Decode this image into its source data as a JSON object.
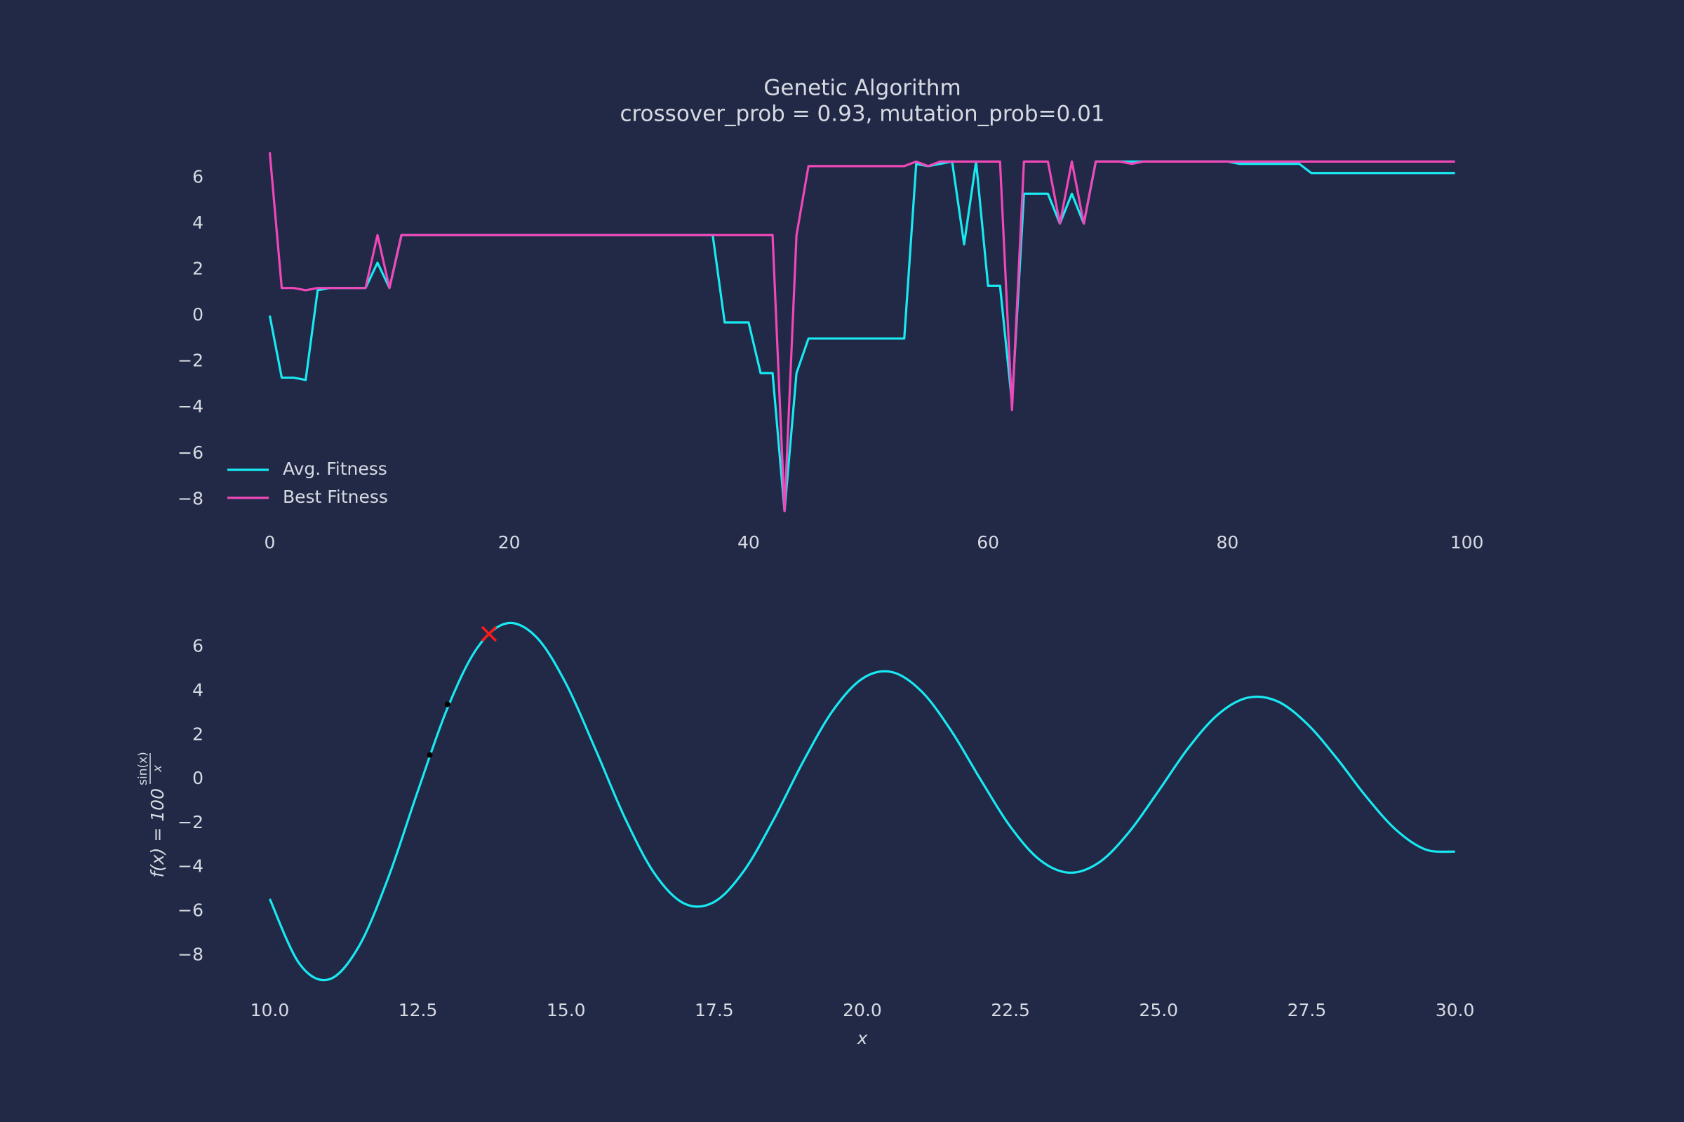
{
  "chart_data": [
    {
      "type": "line",
      "title": "Genetic Algorithm",
      "subtitle": "crossover_prob = 0.93, mutation_prob=0.01",
      "xlim": [
        -4.95,
        103.95
      ],
      "ylim": [
        -9.3,
        7.9
      ],
      "xticks": [
        0,
        20,
        40,
        60,
        80,
        100
      ],
      "yticks": [
        {
          "value": -8,
          "label": "−8"
        },
        {
          "value": -6,
          "label": "−6"
        },
        {
          "value": -4,
          "label": "−4"
        },
        {
          "value": -2,
          "label": "−2"
        },
        0,
        2,
        4,
        6
      ],
      "grid": false,
      "legend": "lower left",
      "x": [
        0,
        1,
        2,
        3,
        4,
        5,
        6,
        7,
        8,
        9,
        10,
        11,
        12,
        13,
        14,
        15,
        16,
        17,
        18,
        19,
        20,
        21,
        22,
        23,
        24,
        25,
        26,
        27,
        28,
        29,
        30,
        31,
        32,
        33,
        34,
        35,
        36,
        37,
        38,
        39,
        40,
        41,
        42,
        43,
        44,
        45,
        46,
        47,
        48,
        49,
        50,
        51,
        52,
        53,
        54,
        55,
        56,
        57,
        58,
        59,
        60,
        61,
        62,
        63,
        64,
        65,
        66,
        67,
        68,
        69,
        70,
        71,
        72,
        73,
        74,
        75,
        76,
        77,
        78,
        79,
        80,
        81,
        82,
        83,
        84,
        85,
        86,
        87,
        88,
        89,
        90,
        91,
        92,
        93,
        94,
        95,
        96,
        97,
        98,
        99
      ],
      "series": [
        {
          "name": "Avg. Fitness",
          "color": "#18e9f2",
          "values": [
            0,
            -2.7,
            -2.7,
            -2.8,
            1.1,
            1.2,
            1.2,
            1.2,
            1.2,
            2.3,
            1.2,
            3.5,
            3.5,
            3.5,
            3.5,
            3.5,
            3.5,
            3.5,
            3.5,
            3.5,
            3.5,
            3.5,
            3.5,
            3.5,
            3.5,
            3.5,
            3.5,
            3.5,
            3.5,
            3.5,
            3.5,
            3.5,
            3.5,
            3.5,
            3.5,
            3.5,
            3.5,
            3.5,
            -0.3,
            -0.3,
            -0.3,
            -2.5,
            -2.5,
            -8.5,
            -2.5,
            -1.0,
            -1.0,
            -1.0,
            -1.0,
            -1.0,
            -1.0,
            -1.0,
            -1.0,
            -1.0,
            6.6,
            6.5,
            6.6,
            6.7,
            3.1,
            6.7,
            1.3,
            1.3,
            -3.8,
            5.3,
            5.3,
            5.3,
            4.0,
            5.3,
            4.0,
            6.7,
            6.7,
            6.7,
            6.7,
            6.7,
            6.7,
            6.7,
            6.7,
            6.7,
            6.7,
            6.7,
            6.7,
            6.6,
            6.6,
            6.6,
            6.6,
            6.6,
            6.6,
            6.2,
            6.2,
            6.2,
            6.2,
            6.2,
            6.2,
            6.2,
            6.2,
            6.2,
            6.2,
            6.2,
            6.2,
            6.2
          ]
        },
        {
          "name": "Best Fitness",
          "color": "#f048b8",
          "values": [
            7.1,
            1.2,
            1.2,
            1.1,
            1.2,
            1.2,
            1.2,
            1.2,
            1.2,
            3.5,
            1.2,
            3.5,
            3.5,
            3.5,
            3.5,
            3.5,
            3.5,
            3.5,
            3.5,
            3.5,
            3.5,
            3.5,
            3.5,
            3.5,
            3.5,
            3.5,
            3.5,
            3.5,
            3.5,
            3.5,
            3.5,
            3.5,
            3.5,
            3.5,
            3.5,
            3.5,
            3.5,
            3.5,
            3.5,
            3.5,
            3.5,
            3.5,
            3.5,
            -8.5,
            3.5,
            6.5,
            6.5,
            6.5,
            6.5,
            6.5,
            6.5,
            6.5,
            6.5,
            6.5,
            6.7,
            6.5,
            6.7,
            6.7,
            6.7,
            6.7,
            6.7,
            6.7,
            -4.1,
            6.7,
            6.7,
            6.7,
            4.0,
            6.7,
            4.0,
            6.7,
            6.7,
            6.7,
            6.6,
            6.7,
            6.7,
            6.7,
            6.7,
            6.7,
            6.7,
            6.7,
            6.7,
            6.7,
            6.7,
            6.7,
            6.7,
            6.7,
            6.7,
            6.7,
            6.7,
            6.7,
            6.7,
            6.7,
            6.7,
            6.7,
            6.7,
            6.7,
            6.7,
            6.7,
            6.7,
            6.7
          ]
        }
      ]
    },
    {
      "type": "line",
      "xlabel": "x",
      "ylabel": {
        "base": "f(x) = 100",
        "exponent_numerator": "sin(x)",
        "exponent_denominator": "x"
      },
      "xlim": [
        9,
        31
      ],
      "ylim": [
        -9.9,
        7.9
      ],
      "xticks": [
        {
          "value": 10,
          "label": "10.0"
        },
        {
          "value": 12.5,
          "label": "12.5"
        },
        {
          "value": 15,
          "label": "15.0"
        },
        {
          "value": 17.5,
          "label": "17.5"
        },
        {
          "value": 20,
          "label": "20.0"
        },
        {
          "value": 22.5,
          "label": "22.5"
        },
        {
          "value": 25,
          "label": "25.0"
        },
        {
          "value": 27.5,
          "label": "27.5"
        },
        {
          "value": 30,
          "label": "30.0"
        }
      ],
      "yticks": [
        {
          "value": -8,
          "label": "−8"
        },
        {
          "value": -6,
          "label": "−6"
        },
        {
          "value": -4,
          "label": "−4"
        },
        {
          "value": -2,
          "label": "−2"
        },
        0,
        2,
        4,
        6
      ],
      "grid": false,
      "x": [
        10,
        10.5,
        11,
        11.5,
        12,
        12.5,
        13,
        13.5,
        14,
        14.5,
        15,
        15.5,
        16,
        16.5,
        17,
        17.5,
        18,
        18.5,
        19,
        19.5,
        20,
        20.5,
        21,
        21.5,
        22,
        22.5,
        23,
        23.5,
        24,
        24.5,
        25,
        25.5,
        26,
        26.5,
        27,
        27.5,
        28,
        28.5,
        29,
        29.5,
        30
      ],
      "series": [
        {
          "color": "#18e9f2",
          "values": [
            -5.44,
            -8.378,
            -9.091,
            -7.613,
            -4.471,
            -0.531,
            3.232,
            5.954,
            7.076,
            6.448,
            4.335,
            1.333,
            -1.799,
            -4.314,
            -5.655,
            -5.575,
            -4.172,
            -1.851,
            0.789,
            3.105,
            4.565,
            4.862,
            3.984,
            2.197,
            -0.04,
            -2.165,
            -3.679,
            -4.247,
            -3.773,
            -2.406,
            -0.529,
            1.411,
            2.933,
            3.697,
            3.542,
            2.526,
            0.968,
            -0.785,
            -2.288,
            -3.19,
            -3.293
          ]
        }
      ],
      "points": [
        {
          "x": 12.7,
          "y": 1.1,
          "color": "#000000",
          "marker": "dot"
        },
        {
          "x": 13.0,
          "y": 3.4,
          "color": "#000000",
          "marker": "dot"
        },
        {
          "x": 13.7,
          "y": 6.6,
          "color": "#ff1a1a",
          "marker": "x"
        }
      ]
    }
  ]
}
